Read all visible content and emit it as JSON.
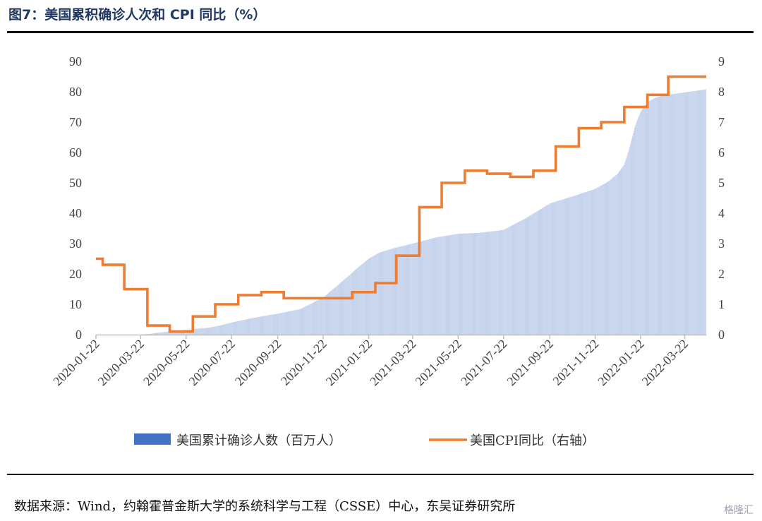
{
  "title": "图7：美国累积确诊人次和 CPI 同比（%）",
  "source": "数据来源：Wind，约翰霍普金斯大学的系统科学与工程（CSSE）中心，东吴证券研究所",
  "watermark": "格隆汇",
  "colors": {
    "cases": "#4472C4",
    "cpi": "#ED7D31",
    "title": "#1f3864"
  },
  "chart_data": {
    "type": "bar+line",
    "x_tick_labels": [
      "2020-01-22",
      "2020-03-22",
      "2020-05-22",
      "2020-07-22",
      "2020-09-22",
      "2020-11-22",
      "2021-01-22",
      "2021-03-22",
      "2021-05-22",
      "2021-07-22",
      "2021-09-22",
      "2021-11-22",
      "2022-01-22",
      "2022-03-22"
    ],
    "x_range": [
      "2020-01-22",
      "2022-04-20"
    ],
    "y_left": {
      "ticks": [
        0,
        10,
        20,
        30,
        40,
        50,
        60,
        70,
        80,
        90
      ],
      "lim": [
        0,
        90
      ]
    },
    "y_right": {
      "ticks": [
        0,
        1,
        2,
        3,
        4,
        5,
        6,
        7,
        8,
        9
      ],
      "lim": [
        0,
        9
      ]
    },
    "legend_position": "bottom",
    "series": [
      {
        "name": "美国累计确诊人数（百万人）",
        "type": "bar",
        "axis": "left",
        "points": [
          [
            "2020-01-22",
            0
          ],
          [
            "2020-03-01",
            0
          ],
          [
            "2020-03-22",
            0.03
          ],
          [
            "2020-04-05",
            0.3
          ],
          [
            "2020-04-22",
            0.85
          ],
          [
            "2020-05-22",
            1.6
          ],
          [
            "2020-06-22",
            2.3
          ],
          [
            "2020-07-10",
            3.2
          ],
          [
            "2020-07-22",
            4.0
          ],
          [
            "2020-08-22",
            5.6
          ],
          [
            "2020-09-22",
            6.9
          ],
          [
            "2020-10-22",
            8.4
          ],
          [
            "2020-11-22",
            12.2
          ],
          [
            "2020-12-22",
            18.5
          ],
          [
            "2021-01-10",
            22.6
          ],
          [
            "2021-01-22",
            25.0
          ],
          [
            "2021-02-05",
            27.0
          ],
          [
            "2021-02-22",
            28.3
          ],
          [
            "2021-03-22",
            30.0
          ],
          [
            "2021-04-22",
            32.0
          ],
          [
            "2021-05-22",
            33.2
          ],
          [
            "2021-06-22",
            33.6
          ],
          [
            "2021-07-22",
            34.5
          ],
          [
            "2021-08-22",
            38.5
          ],
          [
            "2021-09-22",
            43.2
          ],
          [
            "2021-10-22",
            45.5
          ],
          [
            "2021-11-22",
            48.0
          ],
          [
            "2021-12-10",
            50.5
          ],
          [
            "2021-12-22",
            53.0
          ],
          [
            "2021-12-31",
            56.0
          ],
          [
            "2022-01-05",
            60.0
          ],
          [
            "2022-01-10",
            64.5
          ],
          [
            "2022-01-15",
            69.0
          ],
          [
            "2022-01-22",
            73.5
          ],
          [
            "2022-01-31",
            76.5
          ],
          [
            "2022-02-10",
            78.0
          ],
          [
            "2022-02-22",
            78.8
          ],
          [
            "2022-03-22",
            79.8
          ],
          [
            "2022-04-20",
            80.8
          ]
        ]
      },
      {
        "name": "美国CPI同比（右轴）",
        "type": "step-line",
        "axis": "right",
        "points": [
          [
            "2020-01-22",
            2.5
          ],
          [
            "2020-01-31",
            2.3
          ],
          [
            "2020-02-29",
            1.5
          ],
          [
            "2020-03-31",
            0.3
          ],
          [
            "2020-04-30",
            0.1
          ],
          [
            "2020-05-31",
            0.6
          ],
          [
            "2020-06-30",
            1.0
          ],
          [
            "2020-07-31",
            1.3
          ],
          [
            "2020-08-31",
            1.4
          ],
          [
            "2020-09-30",
            1.2
          ],
          [
            "2020-10-31",
            1.2
          ],
          [
            "2020-11-30",
            1.2
          ],
          [
            "2020-12-31",
            1.4
          ],
          [
            "2021-01-31",
            1.7
          ],
          [
            "2021-02-28",
            2.6
          ],
          [
            "2021-03-31",
            4.2
          ],
          [
            "2021-04-30",
            5.0
          ],
          [
            "2021-05-31",
            5.4
          ],
          [
            "2021-06-30",
            5.3
          ],
          [
            "2021-07-31",
            5.2
          ],
          [
            "2021-08-31",
            5.4
          ],
          [
            "2021-09-30",
            6.2
          ],
          [
            "2021-10-31",
            6.8
          ],
          [
            "2021-11-30",
            7.0
          ],
          [
            "2021-12-31",
            7.5
          ],
          [
            "2022-01-31",
            7.9
          ],
          [
            "2022-02-28",
            8.5
          ],
          [
            "2022-04-20",
            8.5
          ]
        ]
      }
    ]
  }
}
